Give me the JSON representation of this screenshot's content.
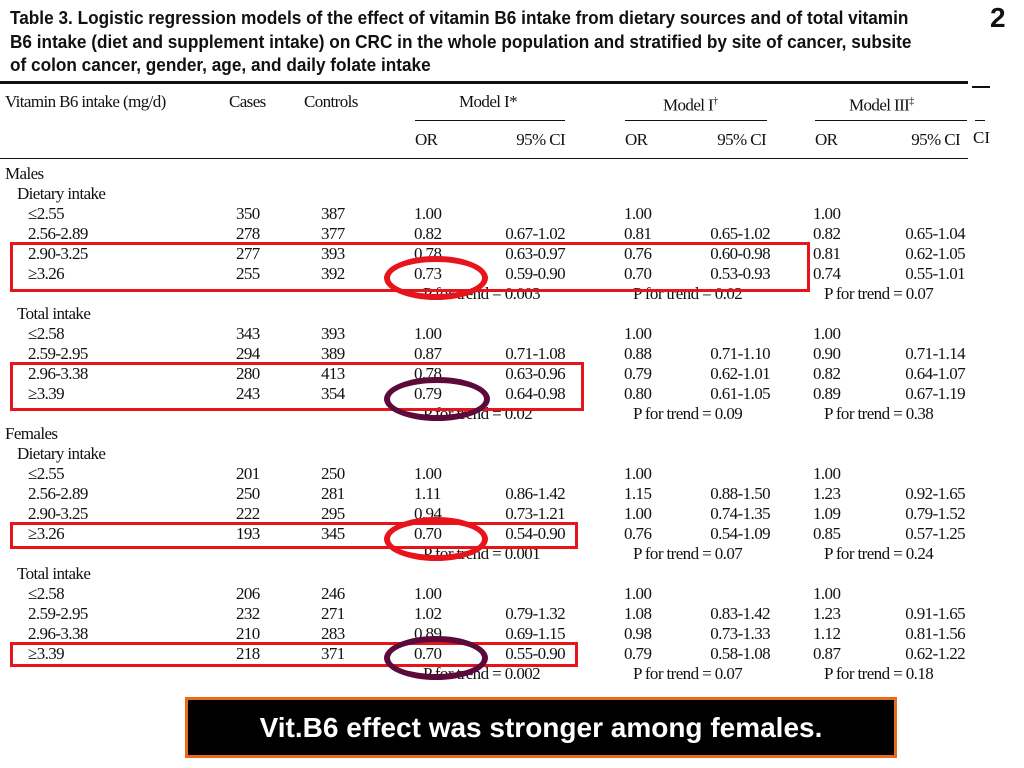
{
  "page_number": "2",
  "title": "Table 3.  Logistic regression models of the effect of vitamin B6 intake from dietary sources and of total vitamin B6 intake (diet and supplement intake) on CRC in the whole population and stratified by site of cancer, subsite of colon cancer, gender, age, and daily folate intake",
  "header": {
    "col_intake": "Vitamin B6 intake (mg/d)",
    "col_cases": "Cases",
    "col_controls": "Controls",
    "model1": "Model I*",
    "model2": "Model I",
    "model2_mark": "†",
    "model3": "Model III",
    "model3_mark": "‡",
    "or": "OR",
    "ci": "95% CI",
    "cut_fragment": "CI"
  },
  "rows": [
    {
      "type": "group",
      "label": "Males"
    },
    {
      "type": "sub",
      "label": "Dietary intake"
    },
    {
      "type": "data",
      "label": "≤2.55",
      "cases": "350",
      "controls": "387",
      "or1": "1.00",
      "ci1": "",
      "or2": "1.00",
      "ci2": "",
      "or3": "1.00",
      "ci3": ""
    },
    {
      "type": "data",
      "label": "2.56-2.89",
      "cases": "278",
      "controls": "377",
      "or1": "0.82",
      "ci1": "0.67-1.02",
      "or2": "0.81",
      "ci2": "0.65-1.02",
      "or3": "0.82",
      "ci3": "0.65-1.04"
    },
    {
      "type": "data",
      "label": "2.90-3.25",
      "cases": "277",
      "controls": "393",
      "or1": "0.78",
      "ci1": "0.63-0.97",
      "or2": "0.76",
      "ci2": "0.60-0.98",
      "or3": "0.81",
      "ci3": "0.62-1.05"
    },
    {
      "type": "data",
      "label": "≥3.26",
      "cases": "255",
      "controls": "392",
      "or1": "0.73",
      "ci1": "0.59-0.90",
      "or2": "0.70",
      "ci2": "0.53-0.93",
      "or3": "0.74",
      "ci3": "0.55-1.01"
    },
    {
      "type": "trend",
      "p1": "P for trend = 0.003",
      "p2": "P for trend = 0.02",
      "p3": "P for trend = 0.07"
    },
    {
      "type": "sub",
      "label": "Total intake"
    },
    {
      "type": "data",
      "label": "≤2.58",
      "cases": "343",
      "controls": "393",
      "or1": "1.00",
      "ci1": "",
      "or2": "1.00",
      "ci2": "",
      "or3": "1.00",
      "ci3": ""
    },
    {
      "type": "data",
      "label": "2.59-2.95",
      "cases": "294",
      "controls": "389",
      "or1": "0.87",
      "ci1": "0.71-1.08",
      "or2": "0.88",
      "ci2": "0.71-1.10",
      "or3": "0.90",
      "ci3": "0.71-1.14"
    },
    {
      "type": "data",
      "label": "2.96-3.38",
      "cases": "280",
      "controls": "413",
      "or1": "0.78",
      "ci1": "0.63-0.96",
      "or2": "0.79",
      "ci2": "0.62-1.01",
      "or3": "0.82",
      "ci3": "0.64-1.07"
    },
    {
      "type": "data",
      "label": "≥3.39",
      "cases": "243",
      "controls": "354",
      "or1": "0.79",
      "ci1": "0.64-0.98",
      "or2": "0.80",
      "ci2": "0.61-1.05",
      "or3": "0.89",
      "ci3": "0.67-1.19"
    },
    {
      "type": "trend",
      "p1": "P for trend = 0.02",
      "p2": "P for trend = 0.09",
      "p3": "P for trend = 0.38"
    },
    {
      "type": "group",
      "label": "Females"
    },
    {
      "type": "sub",
      "label": "Dietary intake"
    },
    {
      "type": "data",
      "label": "≤2.55",
      "cases": "201",
      "controls": "250",
      "or1": "1.00",
      "ci1": "",
      "or2": "1.00",
      "ci2": "",
      "or3": "1.00",
      "ci3": ""
    },
    {
      "type": "data",
      "label": "2.56-2.89",
      "cases": "250",
      "controls": "281",
      "or1": "1.11",
      "ci1": "0.86-1.42",
      "or2": "1.15",
      "ci2": "0.88-1.50",
      "or3": "1.23",
      "ci3": "0.92-1.65"
    },
    {
      "type": "data",
      "label": "2.90-3.25",
      "cases": "222",
      "controls": "295",
      "or1": "0.94",
      "ci1": "0.73-1.21",
      "or2": "1.00",
      "ci2": "0.74-1.35",
      "or3": "1.09",
      "ci3": "0.79-1.52"
    },
    {
      "type": "data",
      "label": "≥3.26",
      "cases": "193",
      "controls": "345",
      "or1": "0.70",
      "ci1": "0.54-0.90",
      "or2": "0.76",
      "ci2": "0.54-1.09",
      "or3": "0.85",
      "ci3": "0.57-1.25"
    },
    {
      "type": "trend",
      "p1": "P for trend = 0.001",
      "p2": "P for trend = 0.07",
      "p3": "P for trend = 0.24"
    },
    {
      "type": "sub",
      "label": "Total intake"
    },
    {
      "type": "data",
      "label": "≤2.58",
      "cases": "206",
      "controls": "246",
      "or1": "1.00",
      "ci1": "",
      "or2": "1.00",
      "ci2": "",
      "or3": "1.00",
      "ci3": ""
    },
    {
      "type": "data",
      "label": "2.59-2.95",
      "cases": "232",
      "controls": "271",
      "or1": "1.02",
      "ci1": "0.79-1.32",
      "or2": "1.08",
      "ci2": "0.83-1.42",
      "or3": "1.23",
      "ci3": "0.91-1.65"
    },
    {
      "type": "data",
      "label": "2.96-3.38",
      "cases": "210",
      "controls": "283",
      "or1": "0.89",
      "ci1": "0.69-1.15",
      "or2": "0.98",
      "ci2": "0.73-1.33",
      "or3": "1.12",
      "ci3": "0.81-1.56"
    },
    {
      "type": "data",
      "label": "≥3.39",
      "cases": "218",
      "controls": "371",
      "or1": "0.70",
      "ci1": "0.55-0.90",
      "or2": "0.79",
      "ci2": "0.58-1.08",
      "or3": "0.87",
      "ci3": "0.62-1.22"
    },
    {
      "type": "trend",
      "p1": "P for trend = 0.002",
      "p2": "P for trend = 0.07",
      "p3": "P for trend = 0.18"
    }
  ],
  "caption": "Vit.B6 effect was stronger among females.",
  "colors": {
    "highlight_box": "#e8141c",
    "circle_red": "#e8141c",
    "circle_purple": "#5c0a3a",
    "caption_bg": "#000000",
    "caption_border": "#e86a1a"
  }
}
